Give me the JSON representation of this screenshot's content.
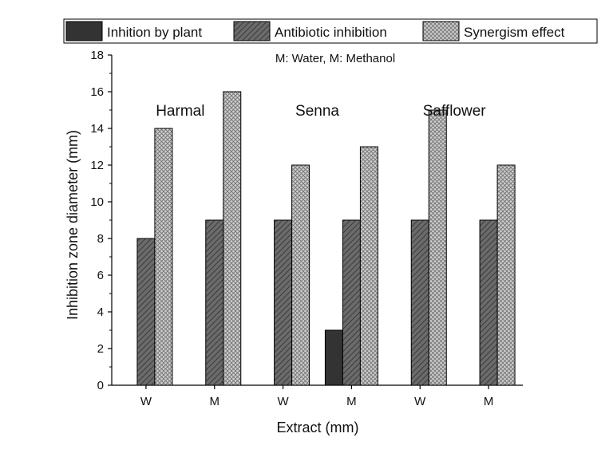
{
  "chart_data": {
    "type": "bar",
    "xlabel": "Extract (mm)",
    "ylabel": "Inhibition zone diameter (mm)",
    "ylim": [
      0,
      18
    ],
    "yticks": [
      0,
      2,
      4,
      6,
      8,
      10,
      12,
      14,
      16,
      18
    ],
    "categories": [
      "W",
      "M",
      "W",
      "M",
      "W",
      "M"
    ],
    "series": [
      {
        "name": "Inhition by plant",
        "values": [
          0,
          0,
          0,
          3,
          0,
          0
        ],
        "color": "#333333",
        "pattern": "solid"
      },
      {
        "name": "Antibiotic inhibition",
        "values": [
          8,
          9,
          9,
          9,
          9,
          9
        ],
        "color": "#666666",
        "pattern": "diagonal-hatch"
      },
      {
        "name": "Synergism effect",
        "values": [
          14,
          16,
          12,
          13,
          15,
          12
        ],
        "color": "#bdbdbd",
        "pattern": "crosshatch"
      }
    ],
    "annotation": "M: Water, M: Methanol",
    "group_labels": [
      {
        "text": "Harmal",
        "value": 15
      },
      {
        "text": "Senna",
        "value": 15
      },
      {
        "text": "Safflower",
        "value": 15
      }
    ],
    "legend_position": "top",
    "grid": false
  }
}
